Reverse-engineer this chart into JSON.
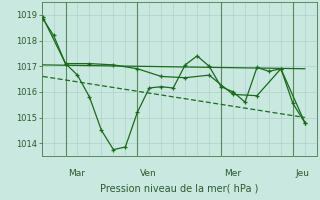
{
  "xlabel": "Pression niveau de la mer( hPa )",
  "bg_color": "#c8e8e0",
  "line_color": "#1a6b1a",
  "grid_color": "#a8ccc4",
  "tick_color": "#2d5a2d",
  "ylim": [
    1013.5,
    1019.5
  ],
  "yticks": [
    1014,
    1015,
    1016,
    1017,
    1018,
    1019
  ],
  "xlim": [
    0,
    11.5
  ],
  "day_labels": [
    "Mar",
    "Ven",
    "Mer",
    "Jeu"
  ],
  "day_positions": [
    1.0,
    4.0,
    7.5,
    10.5
  ],
  "vline_positions": [
    1.0,
    4.0,
    7.5,
    10.5
  ],
  "series_jagged1_x": [
    0.05,
    0.5,
    1.0,
    1.5,
    2.0,
    2.5,
    3.0,
    3.5,
    4.0,
    4.5,
    5.0,
    5.5,
    6.0,
    6.5,
    7.0,
    7.5,
    8.0,
    8.5,
    9.0,
    9.5,
    10.0,
    10.5,
    11.0
  ],
  "series_jagged1_y": [
    1018.85,
    1018.2,
    1017.1,
    1016.65,
    1015.8,
    1014.5,
    1013.75,
    1013.85,
    1015.2,
    1016.15,
    1016.2,
    1016.15,
    1017.05,
    1017.4,
    1017.0,
    1016.2,
    1016.0,
    1015.6,
    1016.95,
    1016.8,
    1016.9,
    1015.55,
    1014.8
  ],
  "series_jagged2_x": [
    0.05,
    1.0,
    2.0,
    3.0,
    4.0,
    5.0,
    6.0,
    7.0,
    8.0,
    9.0,
    10.0,
    11.0
  ],
  "series_jagged2_y": [
    1018.9,
    1017.1,
    1017.1,
    1017.05,
    1016.9,
    1016.6,
    1016.55,
    1016.65,
    1015.9,
    1015.85,
    1016.9,
    1014.8
  ],
  "trend1_x": [
    0.05,
    11.0
  ],
  "trend1_y": [
    1017.05,
    1016.9
  ],
  "trend2_x": [
    0.05,
    11.0
  ],
  "trend2_y": [
    1016.6,
    1015.0
  ]
}
